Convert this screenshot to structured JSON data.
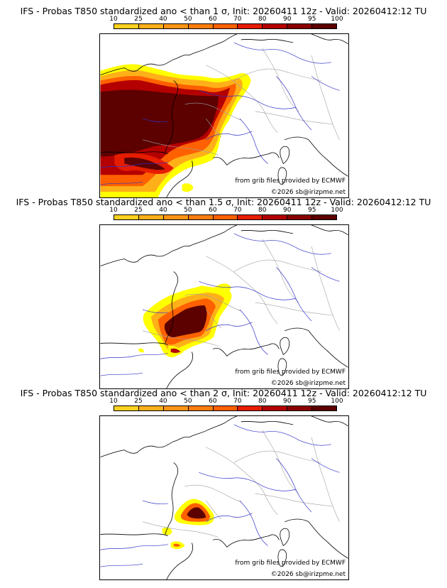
{
  "legend": {
    "labels": [
      "10",
      "25",
      "40",
      "50",
      "60",
      "70",
      "80",
      "90",
      "95",
      "100"
    ],
    "colors": [
      "#ffff00",
      "#ffd21e",
      "#ffb019",
      "#ff9414",
      "#ff7d0d",
      "#ff6000",
      "#e61c00",
      "#b40000",
      "#8a0000",
      "#5c0000"
    ]
  },
  "panels": [
    {
      "title": "IFS - Probas T850  standardized ano < than 1 σ, Init: 20260411 12z - Valid: 20260412:12 TU"
    },
    {
      "title": "IFS - Probas T850  standardized ano < than 1.5 σ, Init: 20260411 12z - Valid: 20260412:12 TU"
    },
    {
      "title": "IFS - Probas T850  standardized ano < than 2 σ, Init: 20260411 12z - Valid: 20260412:12 TU"
    }
  ],
  "credits": {
    "grib": "from grib files provided by ECMWF",
    "copyright": "©2026 sb@irizpme.net"
  },
  "colors": {
    "coastline": "#000000",
    "rivers": "#3232c8",
    "borders": "#a0a0a0"
  }
}
